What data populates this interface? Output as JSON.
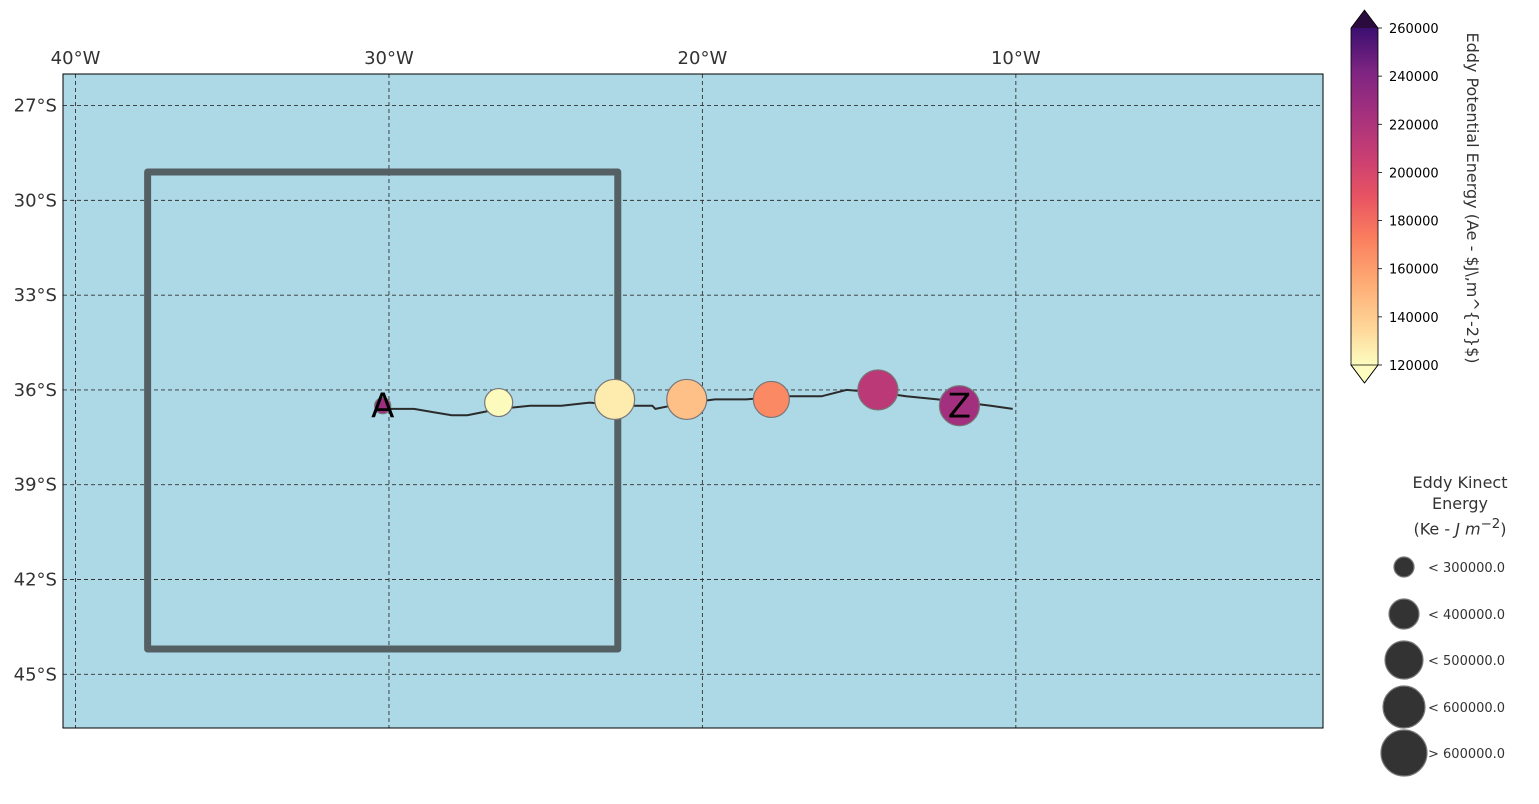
{
  "map": {
    "lon_labels": [
      "40°W",
      "30°W",
      "20°W",
      "10°W"
    ],
    "lat_labels": [
      "27°S",
      "30°S",
      "33°S",
      "36°S",
      "39°S",
      "42°S",
      "45°S"
    ],
    "lon_values": [
      -40,
      -30,
      -20,
      -10
    ],
    "lat_values": [
      -27,
      -30,
      -33,
      -36,
      -39,
      -42,
      -45
    ],
    "extent": {
      "lon_min": -40.4,
      "lon_max": -0.2,
      "lat_min": -46.7,
      "lat_max": -26.0
    },
    "ocean_color": "#add8e6",
    "box": {
      "lon_min": -37.7,
      "lon_max": -22.7,
      "lat_max": -29.1,
      "lat_min": -44.2,
      "color": "#556065"
    },
    "track": [
      [
        -30.3,
        -36.6
      ],
      [
        -29.2,
        -36.6
      ],
      [
        -28.6,
        -36.7
      ],
      [
        -28.0,
        -36.8
      ],
      [
        -27.5,
        -36.8
      ],
      [
        -27.0,
        -36.7
      ],
      [
        -26.5,
        -36.6
      ],
      [
        -25.5,
        -36.5
      ],
      [
        -24.5,
        -36.5
      ],
      [
        -23.6,
        -36.4
      ],
      [
        -22.5,
        -36.5
      ],
      [
        -21.6,
        -36.5
      ],
      [
        -21.5,
        -36.6
      ],
      [
        -21.0,
        -36.5
      ],
      [
        -20.4,
        -36.4
      ],
      [
        -19.6,
        -36.3
      ],
      [
        -18.6,
        -36.3
      ],
      [
        -17.4,
        -36.2
      ],
      [
        -16.2,
        -36.2
      ],
      [
        -15.4,
        -36.0
      ],
      [
        -14.2,
        -36.1
      ],
      [
        -13.5,
        -36.2
      ],
      [
        -12.5,
        -36.3
      ],
      [
        -11.6,
        -36.4
      ],
      [
        -10.8,
        -36.5
      ],
      [
        -10.1,
        -36.6
      ]
    ],
    "eddies": [
      {
        "lon": -30.2,
        "lat": -36.5,
        "ape": 228000,
        "size_class": 0
      },
      {
        "lon": -26.5,
        "lat": -36.4,
        "ape": 121000,
        "size_class": 1
      },
      {
        "lon": -22.8,
        "lat": -36.3,
        "ape": 127000,
        "size_class": 3
      },
      {
        "lon": -20.5,
        "lat": -36.3,
        "ape": 145000,
        "size_class": 3
      },
      {
        "lon": -17.8,
        "lat": -36.3,
        "ape": 168000,
        "size_class": 2
      },
      {
        "lon": -14.4,
        "lat": -36.0,
        "ape": 213000,
        "size_class": 3
      },
      {
        "lon": -11.8,
        "lat": -36.5,
        "ape": 225000,
        "size_class": 3
      }
    ],
    "start_label": "A",
    "end_label": "Z"
  },
  "colorbar": {
    "title": "Eddy Potential Energy (Ae -  $J\\,m^{-2}$)",
    "tick_labels": [
      "260000",
      "240000",
      "220000",
      "200000",
      "180000",
      "160000",
      "140000",
      "120000"
    ],
    "tick_values": [
      260000,
      240000,
      220000,
      200000,
      180000,
      160000,
      140000,
      120000
    ],
    "vmin": 120000,
    "vmax": 260000,
    "colormap": "magma_r",
    "extend": "both"
  },
  "legend": {
    "title_line1": "Eddy Kinect",
    "title_line2": "Energy",
    "title_line3_prefix": "(Ke - ",
    "title_line3_unit": "J m",
    "title_line3_exp": "−2",
    "items": [
      {
        "label": "< 300000.0"
      },
      {
        "label": "< 400000.0"
      },
      {
        "label": "< 500000.0"
      },
      {
        "label": "< 600000.0"
      },
      {
        "label": "> 600000.0"
      }
    ],
    "marker_color": "#333333"
  }
}
